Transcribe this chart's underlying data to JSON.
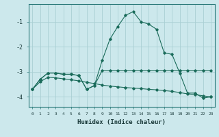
{
  "xlabel": "Humidex (Indice chaleur)",
  "background_color": "#cce8ec",
  "grid_color": "#aacfd4",
  "line_color": "#1a6b5a",
  "x_values": [
    0,
    1,
    2,
    3,
    4,
    5,
    6,
    7,
    8,
    9,
    10,
    11,
    12,
    13,
    14,
    15,
    16,
    17,
    18,
    19,
    20,
    21,
    22,
    23
  ],
  "line1_y": [
    -3.7,
    -3.3,
    -3.05,
    -3.05,
    -3.1,
    -3.1,
    -3.15,
    -3.7,
    -3.55,
    -2.55,
    -1.7,
    -1.2,
    -0.75,
    -0.6,
    -1.0,
    -1.1,
    -1.3,
    -2.25,
    -2.3,
    -3.05,
    -3.85,
    -3.85,
    -4.05,
    -4.0
  ],
  "line2_y": [
    -3.7,
    -3.3,
    -3.05,
    -3.05,
    -3.1,
    -3.1,
    -3.15,
    -3.7,
    -3.55,
    -2.95,
    -2.95,
    -2.95,
    -2.95,
    -2.95,
    -2.95,
    -2.95,
    -2.95,
    -2.95,
    -2.95,
    -2.95,
    -2.95,
    -2.95,
    -2.95,
    -2.95
  ],
  "line3_y": [
    -3.7,
    -3.4,
    -3.22,
    -3.24,
    -3.28,
    -3.32,
    -3.36,
    -3.42,
    -3.47,
    -3.53,
    -3.57,
    -3.6,
    -3.63,
    -3.65,
    -3.67,
    -3.7,
    -3.72,
    -3.75,
    -3.78,
    -3.83,
    -3.88,
    -3.91,
    -3.96,
    -4.0
  ],
  "ylim": [
    -4.4,
    -0.3
  ],
  "yticks": [
    -4,
    -3,
    -2,
    -1
  ],
  "xlim": [
    -0.5,
    23.5
  ],
  "xtick_labels": [
    "0",
    "1",
    "2",
    "3",
    "4",
    "5",
    "6",
    "7",
    "8",
    "9",
    "10",
    "11",
    "12",
    "13",
    "14",
    "15",
    "16",
    "17",
    "18",
    "19",
    "20",
    "21",
    "22",
    "23"
  ]
}
